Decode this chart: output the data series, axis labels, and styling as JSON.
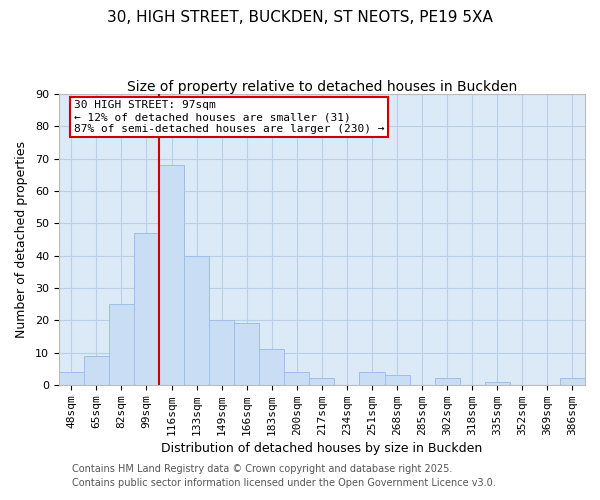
{
  "title": "30, HIGH STREET, BUCKDEN, ST NEOTS, PE19 5XA",
  "subtitle": "Size of property relative to detached houses in Buckden",
  "xlabel": "Distribution of detached houses by size in Buckden",
  "ylabel": "Number of detached properties",
  "bar_labels": [
    "48sqm",
    "65sqm",
    "82sqm",
    "99sqm",
    "116sqm",
    "133sqm",
    "149sqm",
    "166sqm",
    "183sqm",
    "200sqm",
    "217sqm",
    "234sqm",
    "251sqm",
    "268sqm",
    "285sqm",
    "302sqm",
    "318sqm",
    "335sqm",
    "352sqm",
    "369sqm",
    "386sqm"
  ],
  "bar_values": [
    4,
    9,
    25,
    47,
    68,
    40,
    20,
    19,
    11,
    4,
    2,
    0,
    4,
    3,
    0,
    2,
    0,
    1,
    0,
    0,
    2
  ],
  "bar_color": "#c9ddf5",
  "bar_edge_color": "#9dbfe8",
  "vline_pos": 3.5,
  "vline_color": "#cc0000",
  "ylim": [
    0,
    90
  ],
  "yticks": [
    0,
    10,
    20,
    30,
    40,
    50,
    60,
    70,
    80,
    90
  ],
  "annotation_text": "30 HIGH STREET: 97sqm\n← 12% of detached houses are smaller (31)\n87% of semi-detached houses are larger (230) →",
  "annotation_box_color": "#ffffff",
  "annotation_box_edge": "#cc0000",
  "footer_line1": "Contains HM Land Registry data © Crown copyright and database right 2025.",
  "footer_line2": "Contains public sector information licensed under the Open Government Licence v3.0.",
  "background_color": "#ffffff",
  "plot_bg_color": "#dce9f7",
  "grid_color": "#b8cfe8",
  "title_fontsize": 11,
  "subtitle_fontsize": 10,
  "axis_label_fontsize": 9,
  "tick_fontsize": 8,
  "annotation_fontsize": 8,
  "footer_fontsize": 7
}
